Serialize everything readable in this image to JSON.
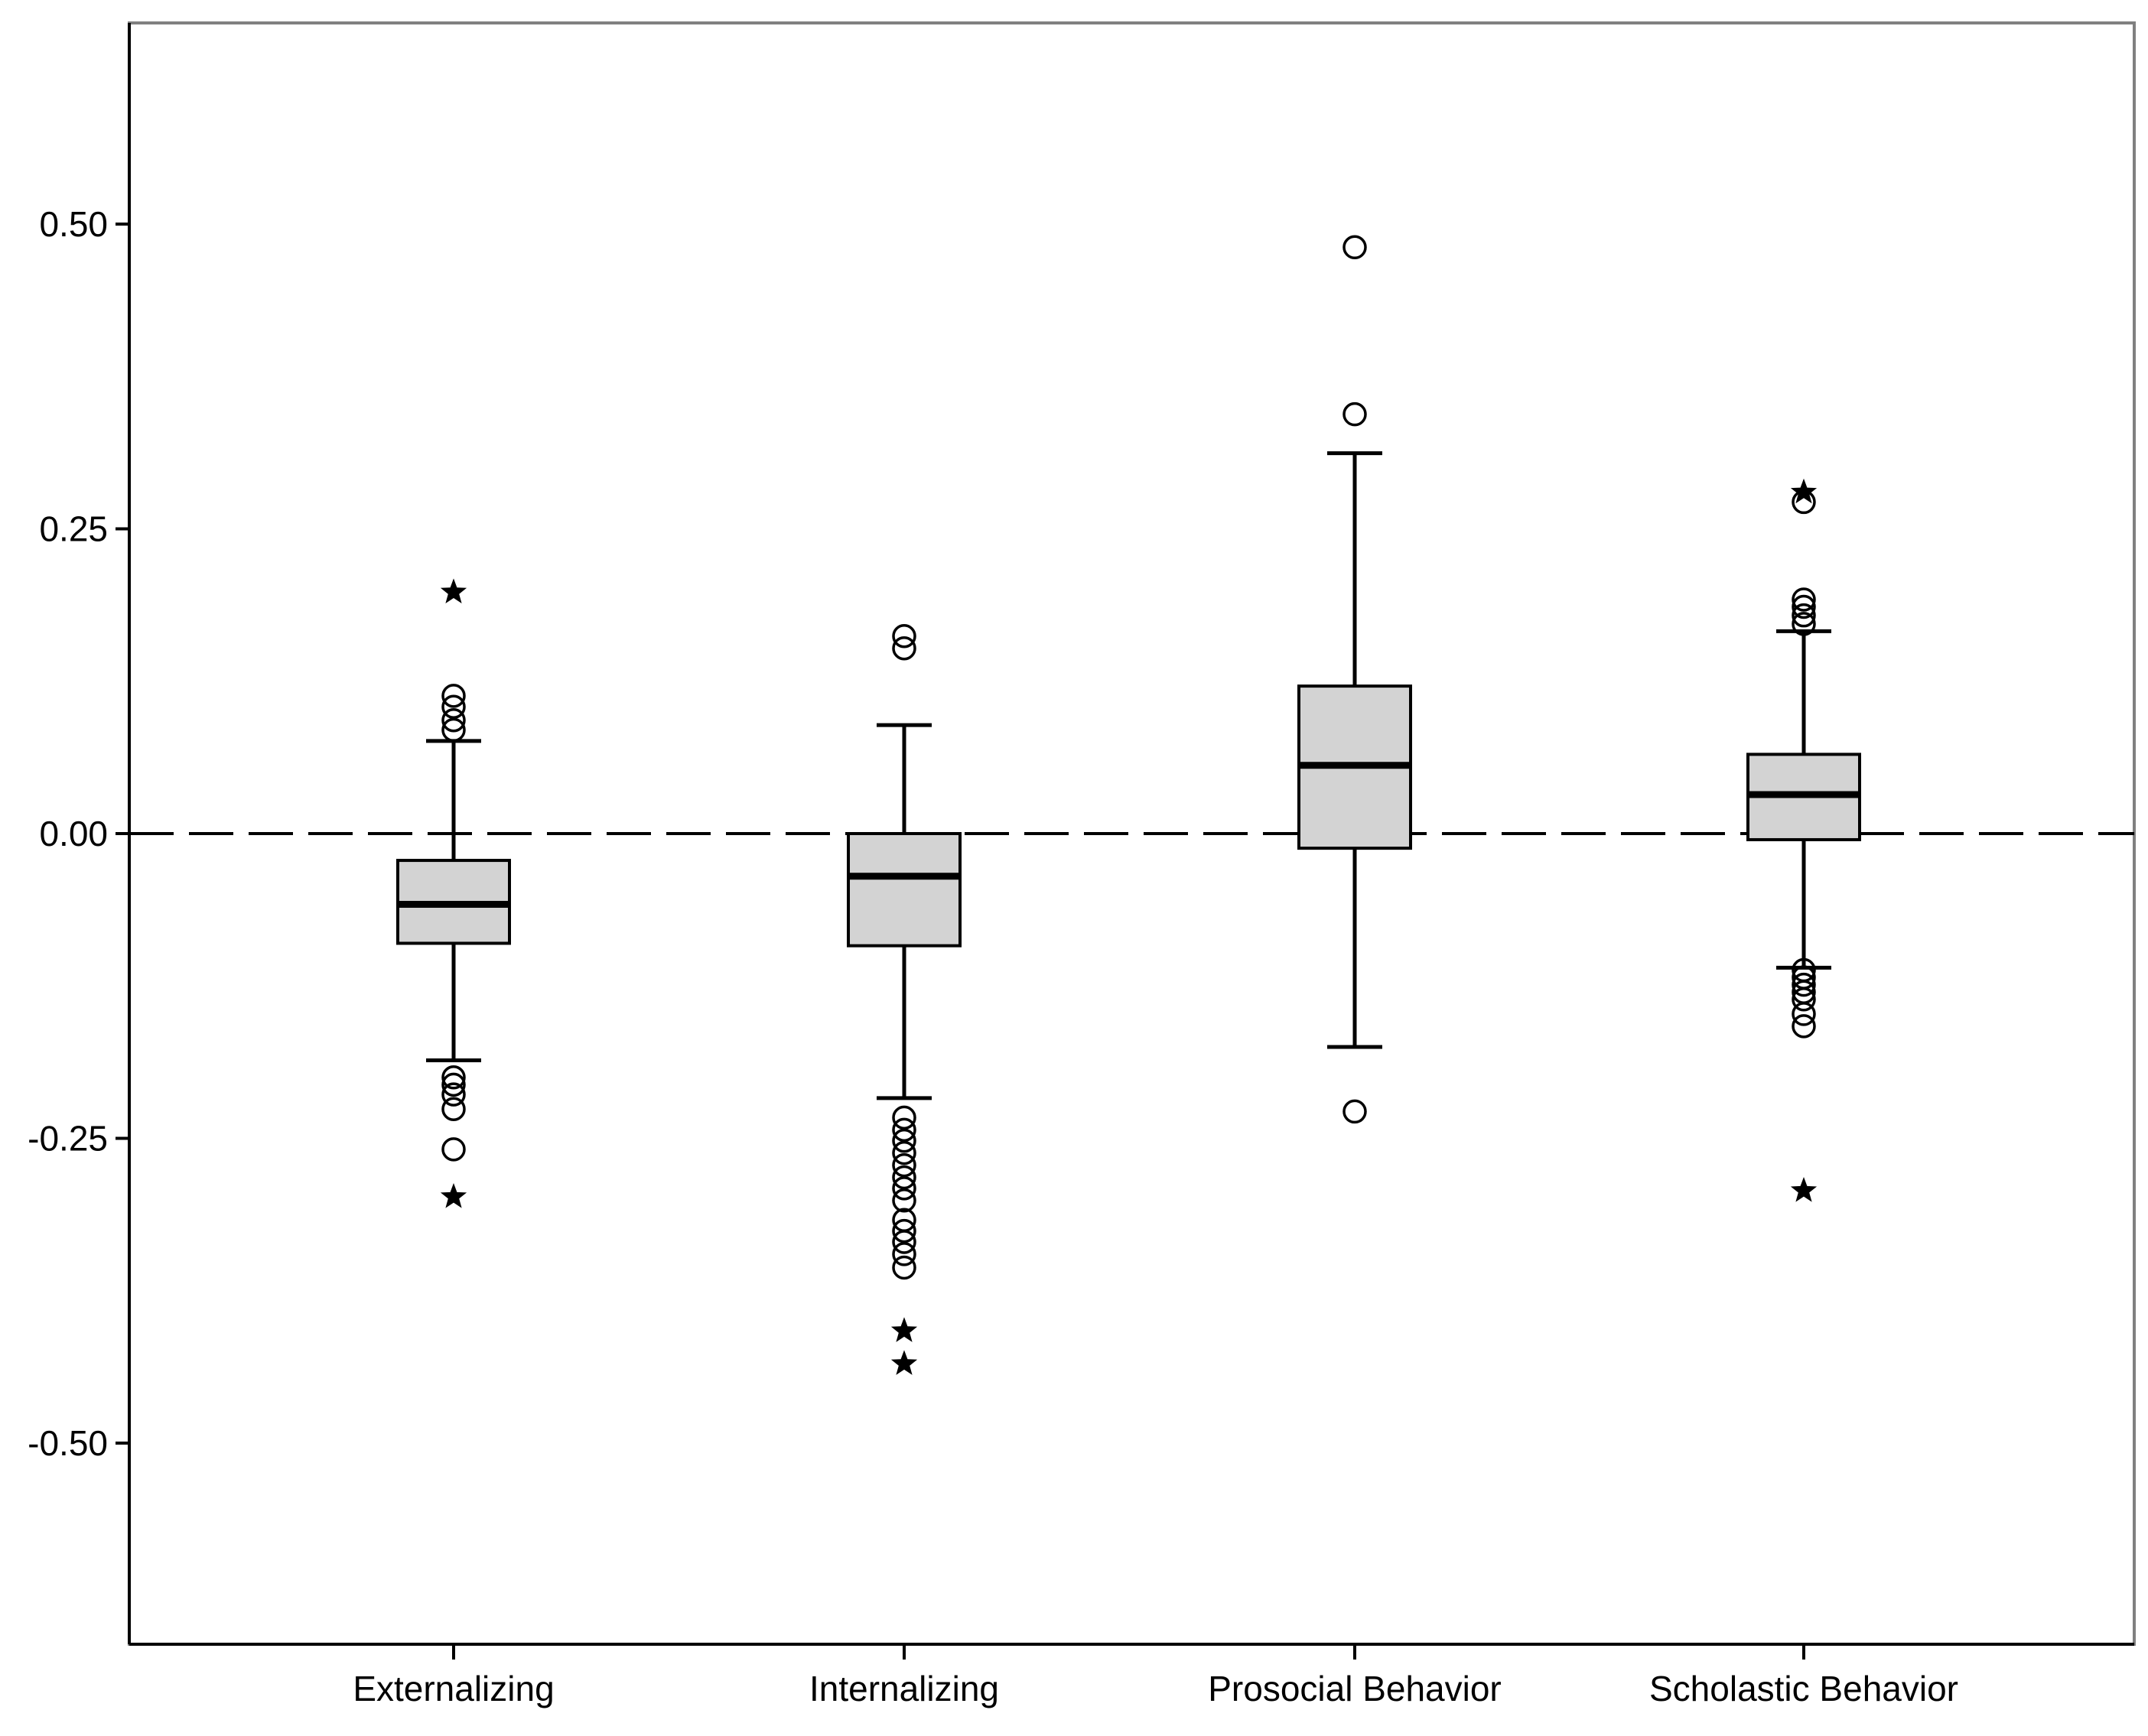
{
  "chart_data": {
    "type": "boxplot",
    "title": "",
    "xlabel": "",
    "ylabel": "",
    "ylim": [
      -0.665,
      0.665
    ],
    "yticks": [
      0.5,
      0.25,
      0.0,
      -0.25,
      -0.5
    ],
    "ytick_labels": [
      "0.50",
      "0.25",
      "0.00",
      "-0.25",
      "-0.50"
    ],
    "reference_line": {
      "y": 0.0,
      "style": "dashed"
    },
    "categories": [
      "Externalizing",
      "Internalizing",
      "Prosocial Behavior",
      "Scholastic Behavior"
    ],
    "boxes": [
      {
        "name": "Externalizing",
        "whisker_low": -0.186,
        "q1": -0.09,
        "median": -0.058,
        "q3": -0.022,
        "whisker_high": 0.076,
        "outliers": [
          0.113,
          0.104,
          0.093,
          0.085,
          -0.2,
          -0.206,
          -0.214,
          -0.226,
          -0.259
        ],
        "extremes": [
          0.198,
          -0.298
        ]
      },
      {
        "name": "Internalizing",
        "whisker_low": -0.217,
        "q1": -0.092,
        "median": -0.035,
        "q3": 0.0,
        "whisker_high": 0.089,
        "outliers": [
          0.162,
          0.152,
          -0.233,
          -0.243,
          -0.252,
          -0.262,
          -0.272,
          -0.282,
          -0.291,
          -0.301,
          -0.317,
          -0.326,
          -0.335,
          -0.345,
          -0.356
        ],
        "extremes": [
          -0.408,
          -0.435
        ]
      },
      {
        "name": "Prosocial Behavior",
        "whisker_low": -0.175,
        "q1": -0.012,
        "median": 0.056,
        "q3": 0.121,
        "whisker_high": 0.312,
        "outliers": [
          0.481,
          0.344,
          -0.228
        ],
        "extremes": []
      },
      {
        "name": "Scholastic Behavior",
        "whisker_low": -0.11,
        "q1": -0.005,
        "median": 0.032,
        "q3": 0.065,
        "whisker_high": 0.166,
        "outliers": [
          0.272,
          0.192,
          0.186,
          0.179,
          0.172,
          -0.112,
          -0.118,
          -0.124,
          -0.13,
          -0.136,
          -0.148,
          -0.158
        ],
        "extremes": [
          0.28,
          -0.293
        ]
      }
    ],
    "colors": {
      "box_fill": "#d3d3d3",
      "stroke": "#000000",
      "frame": "#808080"
    }
  }
}
